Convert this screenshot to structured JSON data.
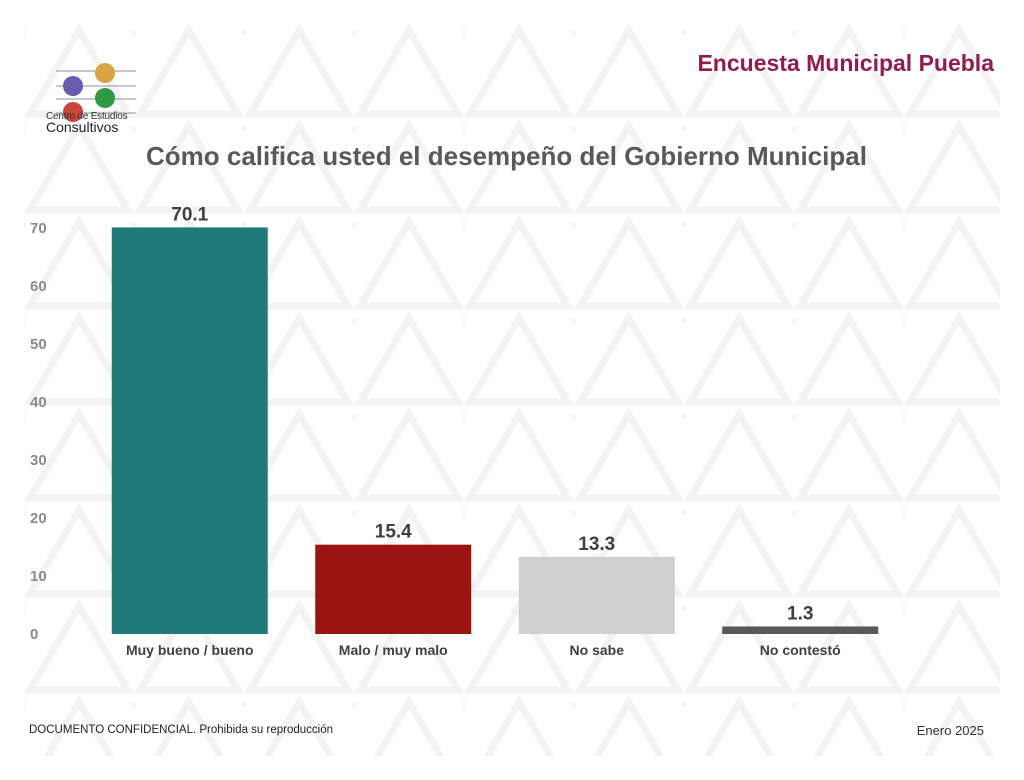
{
  "header": {
    "logo_line1": "Centro de Estudios",
    "logo_line2": "Consultivos",
    "survey_title": "Encuesta Municipal Puebla"
  },
  "chart_data": {
    "type": "bar",
    "title": "Cómo califica usted el desempeño del Gobierno Municipal",
    "categories": [
      "Muy bueno / bueno",
      "Malo / muy malo",
      "No sabe",
      "No contestó"
    ],
    "values": [
      70.1,
      15.4,
      13.3,
      1.3
    ],
    "value_labels": [
      "70.1",
      "15.4",
      "13.3",
      "1.3"
    ],
    "colors": [
      "#1f7a78",
      "#9a1410",
      "#cfcfcf",
      "#595959"
    ],
    "yticks": [
      "0",
      "10",
      "20",
      "30",
      "40",
      "50",
      "60",
      "70"
    ],
    "ylim": [
      0,
      70
    ],
    "xlabel": "",
    "ylabel": "",
    "grid": false,
    "legend": "none"
  },
  "footer": {
    "disclaimer": "DOCUMENTO CONFIDENCIAL. Prohibida su reproducción",
    "date": "Enero 2025"
  },
  "colors": {
    "title_accent": "#8f1d4f",
    "logo_dots": [
      "#d9a441",
      "#6a5bb0",
      "#2e9a44",
      "#c8453c"
    ]
  }
}
